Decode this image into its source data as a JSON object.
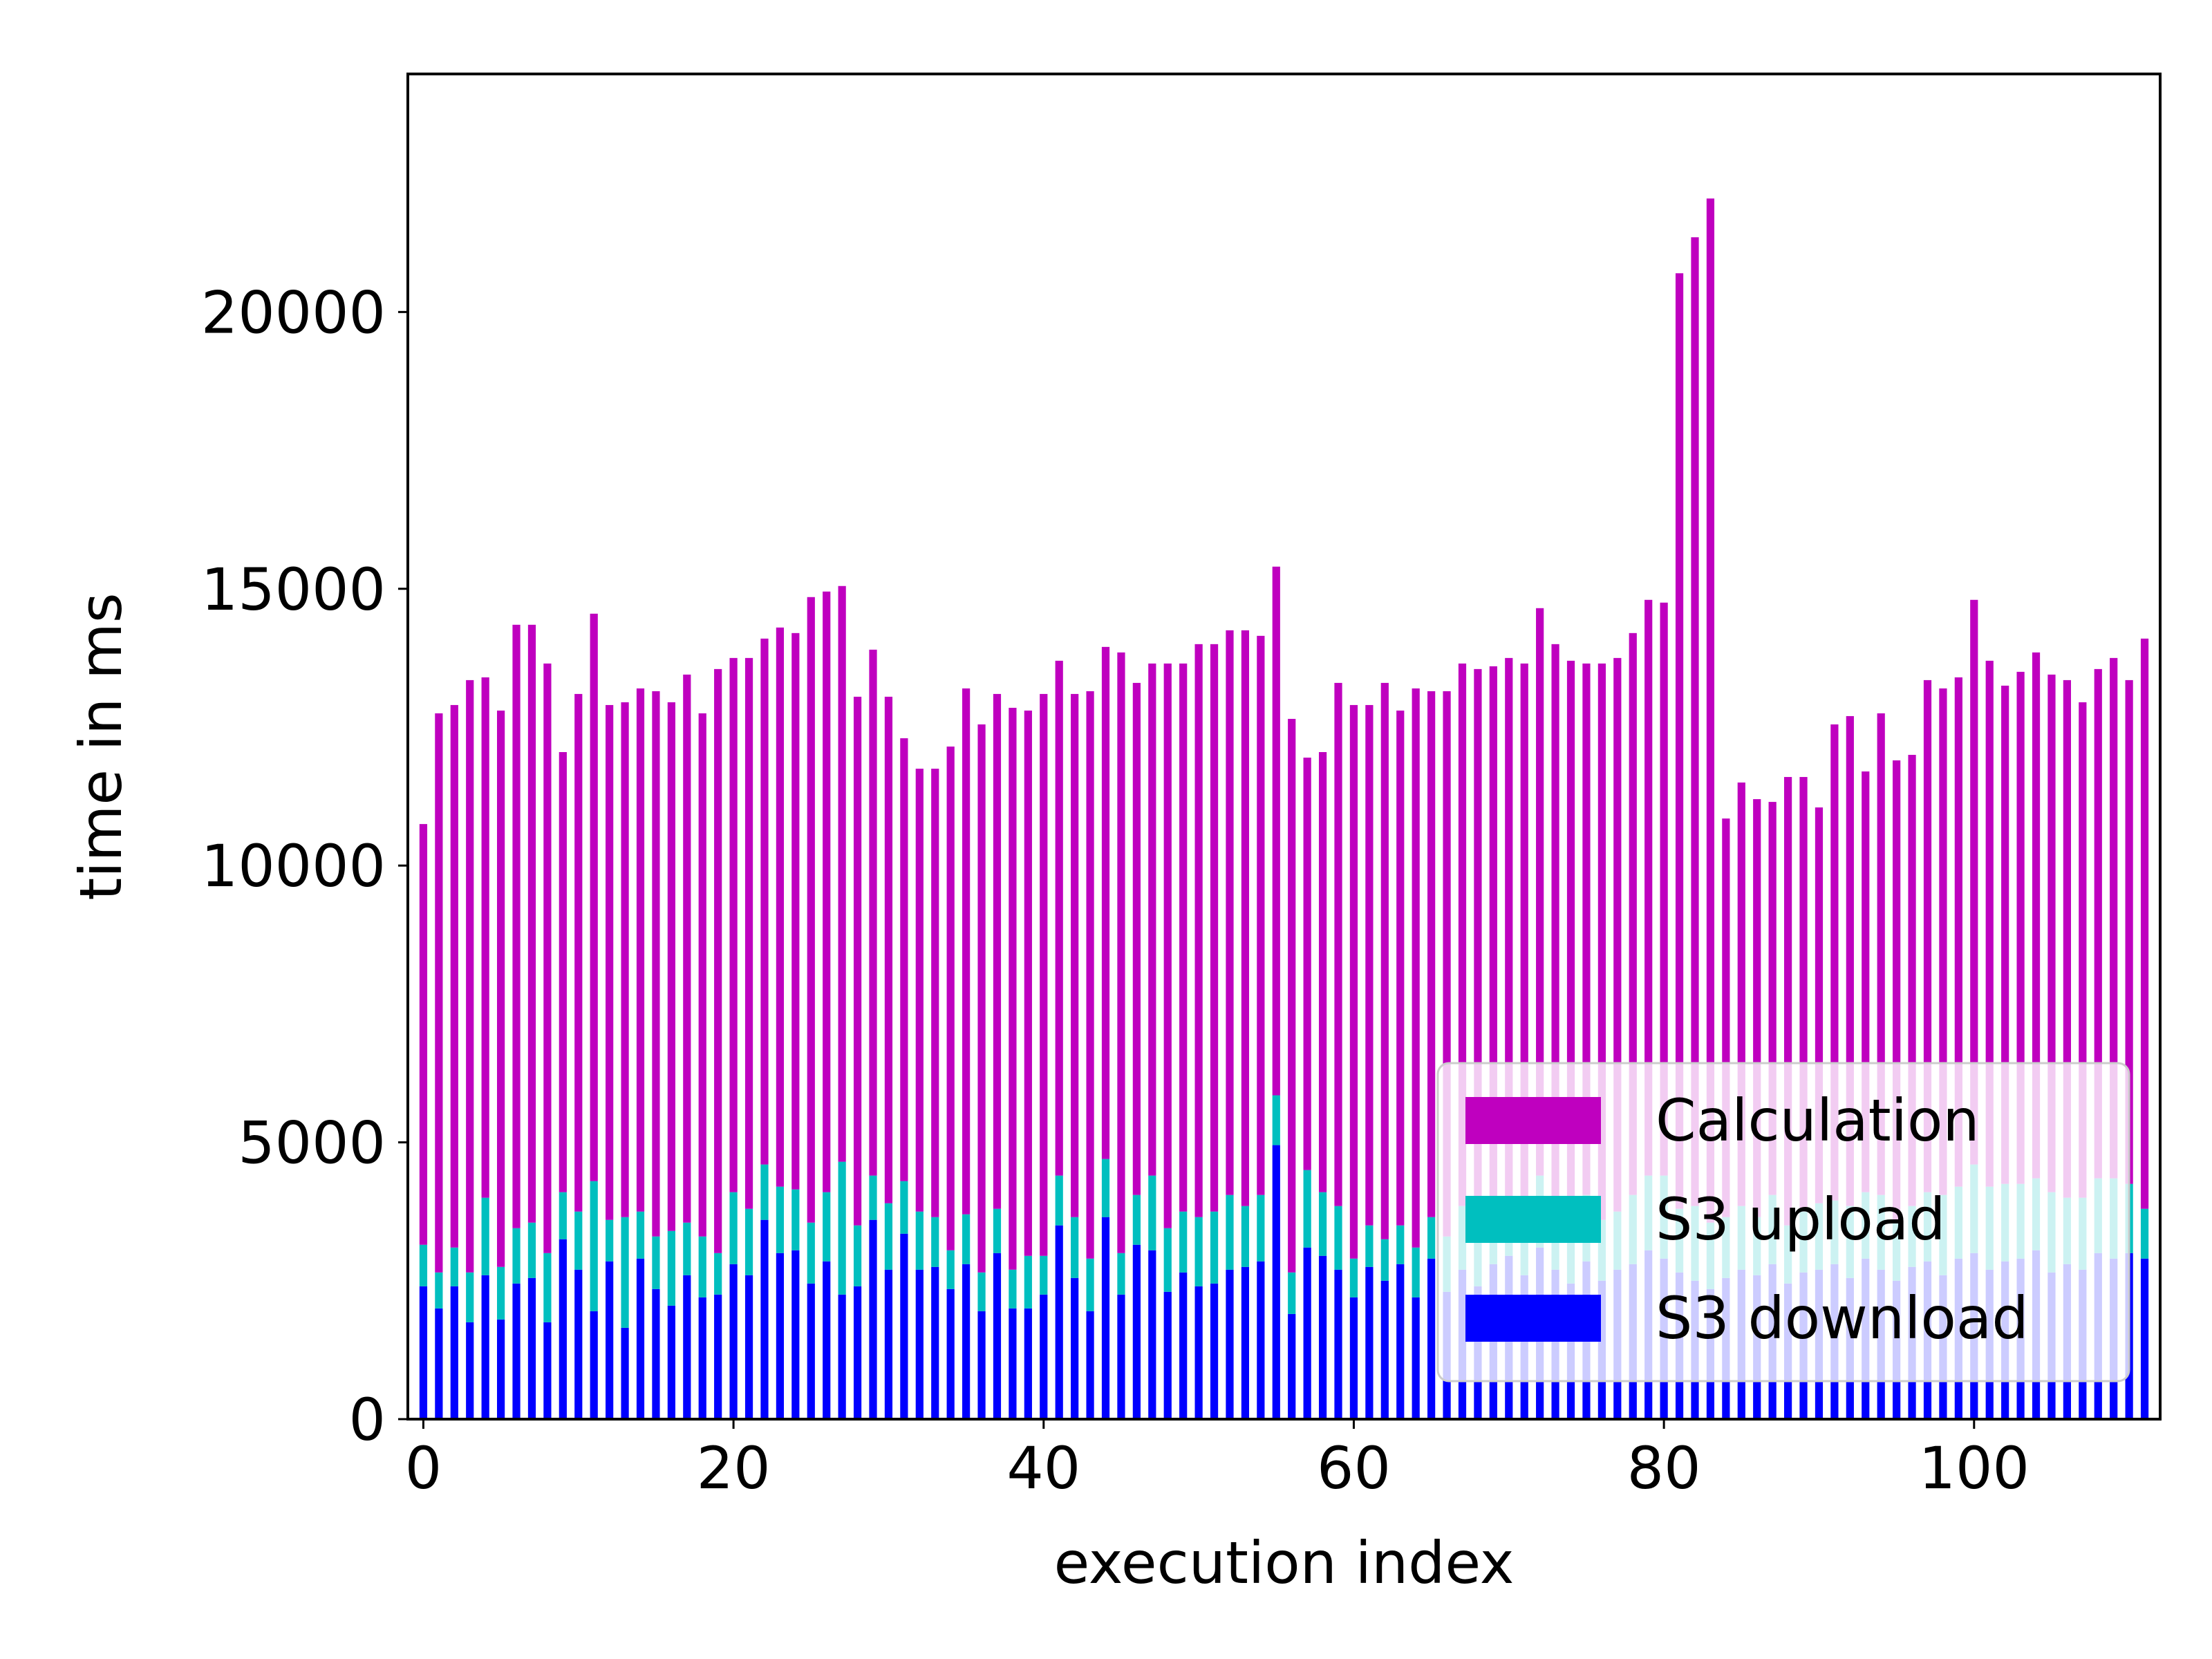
{
  "chart_data": {
    "type": "bar",
    "stacked": true,
    "xlabel": "execution index",
    "ylabel": "time in ms",
    "xlim": [
      -1,
      112
    ],
    "ylim": [
      0,
      24300
    ],
    "xticks": [
      0,
      20,
      40,
      60,
      80,
      100
    ],
    "xtick_labels": [
      "0",
      "20",
      "40",
      "60",
      "80",
      "100"
    ],
    "yticks": [
      0,
      5000,
      10000,
      15000,
      20000
    ],
    "ytick_labels": [
      "0",
      "5000",
      "10000",
      "15000",
      "20000"
    ],
    "grid": false,
    "legend_position": "lower-right",
    "categories": [
      0,
      1,
      2,
      3,
      4,
      5,
      6,
      7,
      8,
      9,
      10,
      11,
      12,
      13,
      14,
      15,
      16,
      17,
      18,
      19,
      20,
      21,
      22,
      23,
      24,
      25,
      26,
      27,
      28,
      29,
      30,
      31,
      32,
      33,
      34,
      35,
      36,
      37,
      38,
      39,
      40,
      41,
      42,
      43,
      44,
      45,
      46,
      47,
      48,
      49,
      50,
      51,
      52,
      53,
      54,
      55,
      56,
      57,
      58,
      59,
      60,
      61,
      62,
      63,
      64,
      65,
      66,
      67,
      68,
      69,
      70,
      71,
      72,
      73,
      74,
      75,
      76,
      77,
      78,
      79,
      80,
      81,
      82,
      83,
      84,
      85,
      86,
      87,
      88,
      89,
      90,
      91,
      92,
      93,
      94,
      95,
      96,
      97,
      98,
      99,
      100,
      101,
      102,
      103,
      104,
      105,
      106,
      107,
      108,
      109,
      110,
      111
    ],
    "series": [
      {
        "name": "S3 download",
        "color": "#0000ff",
        "values": [
          2400,
          2000,
          2400,
          1750,
          2600,
          1800,
          2450,
          2550,
          1750,
          3250,
          2700,
          1950,
          2850,
          1650,
          2900,
          2350,
          2050,
          2600,
          2200,
          2250,
          2800,
          2600,
          3600,
          3000,
          3050,
          2450,
          2850,
          2250,
          2400,
          3600,
          2700,
          3350,
          2700,
          2750,
          2350,
          2800,
          1950,
          3000,
          2000,
          2000,
          2250,
          3500,
          2550,
          1950,
          3650,
          2250,
          3150,
          3050,
          2300,
          2650,
          2400,
          2450,
          2700,
          2750,
          2850,
          4950,
          1900,
          3100,
          2950,
          2700,
          2200,
          2750,
          2500,
          2800,
          2200,
          2900,
          2300,
          2700,
          2400,
          2800,
          2950,
          2600,
          3100,
          2700,
          2450,
          2850,
          2500,
          2700,
          2800,
          3050,
          2900,
          2650,
          2500,
          2350,
          2550,
          2700,
          2600,
          2800,
          2450,
          2650,
          2700,
          2800,
          2550,
          2900,
          2700,
          2500,
          2750,
          2850,
          2600,
          2900,
          3000,
          2700,
          2850,
          2900,
          3050,
          2650,
          2800,
          2700,
          3000,
          2900,
          3000,
          2900
        ]
      },
      {
        "name": "S3 upload",
        "color": "#00bfbf",
        "values": [
          750,
          650,
          700,
          900,
          1400,
          950,
          1000,
          1000,
          1250,
          850,
          1050,
          2350,
          750,
          2000,
          850,
          950,
          1350,
          950,
          1100,
          750,
          1300,
          1200,
          1000,
          1200,
          1100,
          1100,
          1250,
          2400,
          1100,
          800,
          1200,
          950,
          1050,
          900,
          700,
          900,
          700,
          800,
          700,
          950,
          700,
          900,
          1100,
          950,
          1050,
          750,
          900,
          1350,
          1150,
          1100,
          1250,
          1300,
          1350,
          1100,
          1200,
          900,
          750,
          1400,
          1150,
          1150,
          700,
          750,
          750,
          700,
          900,
          750,
          1000,
          1150,
          1050,
          1200,
          1000,
          950,
          1300,
          1100,
          1150,
          1200,
          1100,
          1050,
          1250,
          1350,
          1500,
          1150,
          1350,
          1200,
          1100,
          1150,
          1050,
          1250,
          1050,
          1100,
          1200,
          1150,
          1300,
          1200,
          1350,
          1050,
          1100,
          1250,
          1450,
          1300,
          1600,
          1500,
          1400,
          1350,
          1300,
          1450,
          1200,
          1300,
          1350,
          1450,
          1250,
          900
        ]
      },
      {
        "name": "Calculation",
        "color": "#bf00bf",
        "values": [
          7600,
          10100,
          9800,
          10700,
          9400,
          10050,
          10900,
          10800,
          10650,
          7950,
          9350,
          10250,
          9300,
          9300,
          9450,
          9850,
          9550,
          9900,
          9450,
          10550,
          9650,
          9950,
          9500,
          10100,
          10050,
          11300,
          10850,
          10400,
          9550,
          9500,
          9150,
          8000,
          8000,
          8100,
          9100,
          9500,
          9900,
          9300,
          10150,
          9850,
          10150,
          9300,
          9450,
          10250,
          9250,
          10850,
          9250,
          9250,
          10200,
          9900,
          10350,
          10250,
          10200,
          10400,
          10100,
          9550,
          10000,
          7450,
          7950,
          9450,
          10000,
          9400,
          10050,
          9300,
          10100,
          9500,
          9850,
          9800,
          10100,
          9600,
          9800,
          10100,
          10250,
          10200,
          10100,
          9600,
          10050,
          10000,
          10150,
          10400,
          10350,
          16900,
          17500,
          18500,
          7200,
          7650,
          7550,
          7100,
          8100,
          7850,
          7150,
          8600,
          8850,
          7600,
          8700,
          8350,
          8150,
          9250,
          9150,
          9200,
          10200,
          9500,
          9000,
          9250,
          9500,
          9350,
          9350,
          8950,
          9200,
          9400,
          9100,
          10300
        ]
      }
    ]
  }
}
